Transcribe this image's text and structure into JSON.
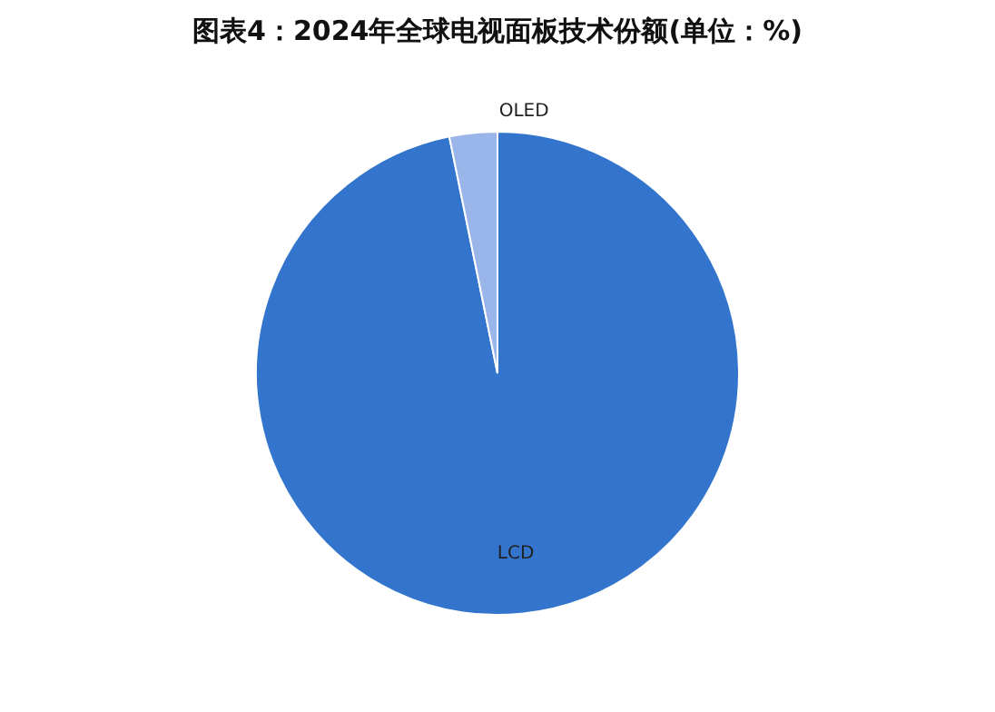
{
  "chart_data": {
    "type": "pie",
    "title": "图表4：2024年全球电视面板技术份额(单位：%)",
    "categories": [
      "LCD",
      "OLED"
    ],
    "values": [
      96.8,
      3.2
    ],
    "colors": [
      "#3375cc",
      "#9ab5ea"
    ],
    "legend": false
  }
}
